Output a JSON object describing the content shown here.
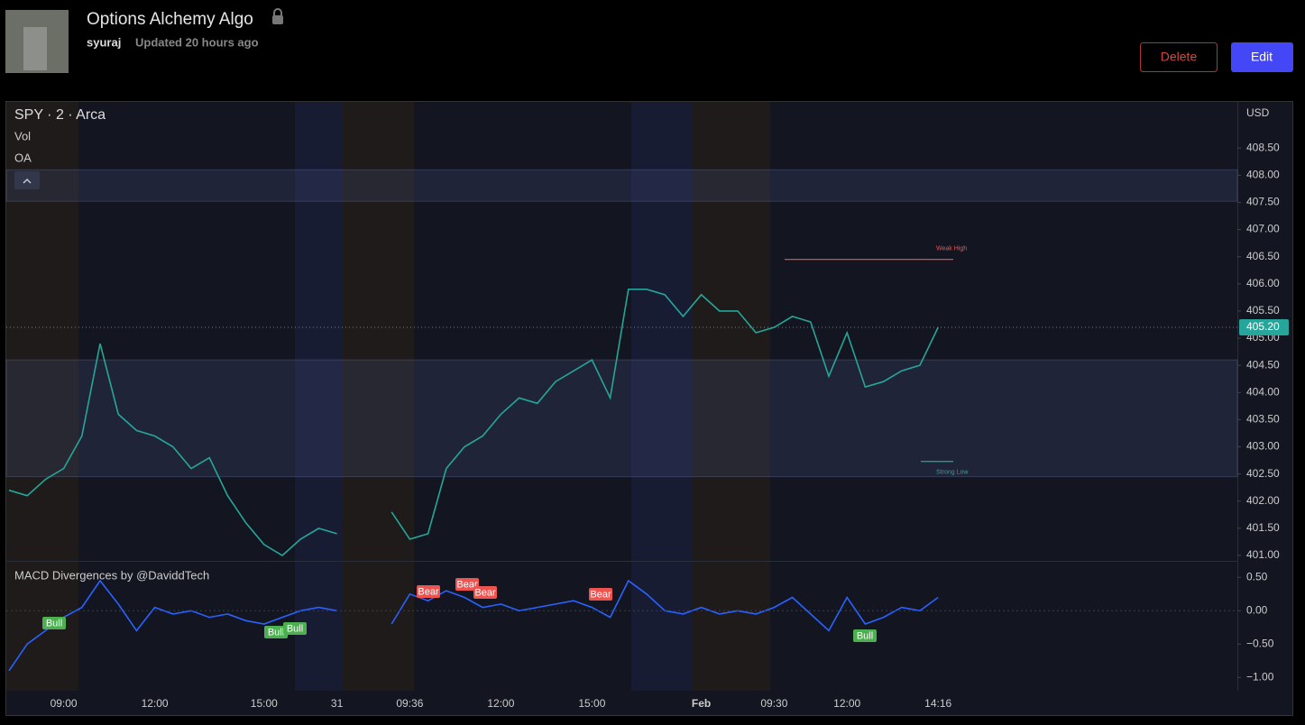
{
  "header": {
    "title": "Options Alchemy Algo",
    "author": "syuraj",
    "updated": "Updated 20 hours ago",
    "buttons": [
      "Delete",
      "Edit"
    ]
  },
  "chart_data": [
    {
      "type": "line",
      "title": "SPY · 2 · Arca",
      "indicators": [
        "Vol",
        "OA"
      ],
      "currency": "USD",
      "color": "#26a69a",
      "categories": [
        null,
        null,
        null,
        "09:00",
        null,
        null,
        null,
        null,
        "12:00",
        null,
        null,
        null,
        null,
        null,
        "15:00",
        null,
        null,
        null,
        "31",
        null,
        null,
        null,
        "09:36",
        null,
        null,
        null,
        null,
        "12:00",
        null,
        null,
        null,
        null,
        "15:00",
        null,
        null,
        null,
        null,
        null,
        "Feb",
        null,
        null,
        null,
        "09:30",
        null,
        null,
        null,
        "12:00",
        null,
        null,
        null,
        null,
        "14:16"
      ],
      "values": [
        402.2,
        402.1,
        402.4,
        402.6,
        403.2,
        404.9,
        403.6,
        403.3,
        403.2,
        403.0,
        402.6,
        402.8,
        402.1,
        401.6,
        401.2,
        401.0,
        401.3,
        401.5,
        401.4,
        null,
        null,
        401.8,
        401.3,
        401.4,
        402.6,
        403.0,
        403.2,
        403.6,
        403.9,
        403.8,
        404.2,
        404.4,
        404.6,
        403.9,
        405.9,
        405.9,
        405.8,
        405.4,
        405.8,
        405.5,
        405.5,
        405.1,
        405.2,
        405.4,
        405.3,
        404.3,
        405.1,
        404.1,
        404.2,
        404.4,
        404.5,
        405.2
      ],
      "ylim": [
        400.9,
        409.35
      ],
      "yticks": [
        {
          "value": 401,
          "label": "401.00"
        },
        {
          "value": 401.5,
          "label": "401.50"
        },
        {
          "value": 402,
          "label": "402.00"
        },
        {
          "value": 402.5,
          "label": "402.50"
        },
        {
          "value": 403,
          "label": "403.00"
        },
        {
          "value": 403.5,
          "label": "403.50"
        },
        {
          "value": 404,
          "label": "404.00"
        },
        {
          "value": 404.5,
          "label": "404.50"
        },
        {
          "value": 405,
          "label": "405.00"
        },
        {
          "value": 405.5,
          "label": "405.50"
        },
        {
          "value": 406,
          "label": "406.00"
        },
        {
          "value": 406.5,
          "label": "406.50"
        },
        {
          "value": 407,
          "label": "407.00"
        },
        {
          "value": 407.5,
          "label": "407.50"
        },
        {
          "value": 408,
          "label": "408.00"
        },
        {
          "value": 408.5,
          "label": "408.50"
        }
      ],
      "last_price": {
        "value": 405.2,
        "label": "405.20"
      },
      "levels": [
        {
          "label": "Weak High",
          "value": 406.45,
          "color": "#ef5350"
        },
        {
          "label": "Strong Low",
          "value": 402.73,
          "color": "#26a69a"
        }
      ],
      "zones": [
        [
          402.45,
          404.6
        ],
        [
          407.52,
          408.1
        ]
      ]
    },
    {
      "type": "line",
      "title": "MACD Divergences by @DaviddTech",
      "color": "#2962ff",
      "values": [
        -0.9,
        -0.5,
        -0.3,
        -0.1,
        0.05,
        0.45,
        0.1,
        -0.3,
        0.05,
        -0.05,
        0.0,
        -0.1,
        -0.05,
        -0.15,
        -0.2,
        -0.1,
        0.0,
        0.05,
        0.0,
        null,
        null,
        -0.2,
        0.25,
        0.15,
        0.3,
        0.2,
        0.05,
        0.1,
        0.0,
        0.05,
        0.1,
        0.15,
        0.05,
        -0.1,
        0.45,
        0.25,
        0.0,
        -0.05,
        0.05,
        -0.05,
        0.0,
        -0.05,
        0.05,
        0.2,
        -0.05,
        -0.3,
        0.2,
        -0.2,
        -0.1,
        0.05,
        0.0,
        0.2
      ],
      "ylim": [
        -1.2,
        0.72
      ],
      "yticks": [
        {
          "value": 0.5,
          "label": "0.50"
        },
        {
          "value": 0,
          "label": "0.00"
        },
        {
          "value": -0.5,
          "label": "−0.50"
        },
        {
          "value": -1,
          "label": "−1.00"
        }
      ],
      "annotations": [
        "Bull",
        "Bull",
        "Bull",
        "Bear",
        "Bear",
        "Bear",
        "Bear",
        "Bull"
      ]
    }
  ]
}
